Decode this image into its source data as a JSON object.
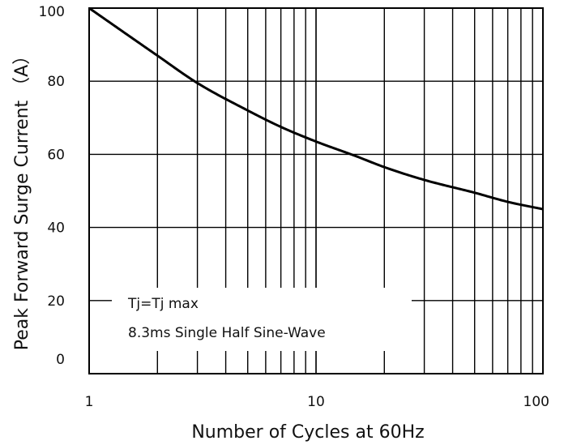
{
  "chart_data": {
    "type": "line",
    "xscale": "log",
    "xlim": [
      1,
      100
    ],
    "ylim": [
      0,
      100
    ],
    "xticks": [
      1,
      10,
      100
    ],
    "xtick_labels": [
      "1",
      "10",
      "100"
    ],
    "yticks": [
      0,
      20,
      40,
      60,
      80,
      100
    ],
    "ytick_labels": [
      "0",
      "20",
      "40",
      "60",
      "80",
      "100"
    ],
    "xlabel": "Number of Cycles at 60Hz",
    "ylabel": "Peak Forward Surge Current （A）",
    "grid": true,
    "annotations": [
      "Tj=Tj max",
      "8.3ms Single Half Sine-Wave"
    ],
    "series": [
      {
        "x": [
          1,
          2,
          3,
          5,
          7,
          10,
          15,
          20,
          30,
          50,
          70,
          100
        ],
        "y": [
          100,
          87,
          79.5,
          72,
          67.5,
          63.5,
          59.5,
          56.5,
          53,
          49.5,
          47,
          45
        ]
      }
    ]
  }
}
